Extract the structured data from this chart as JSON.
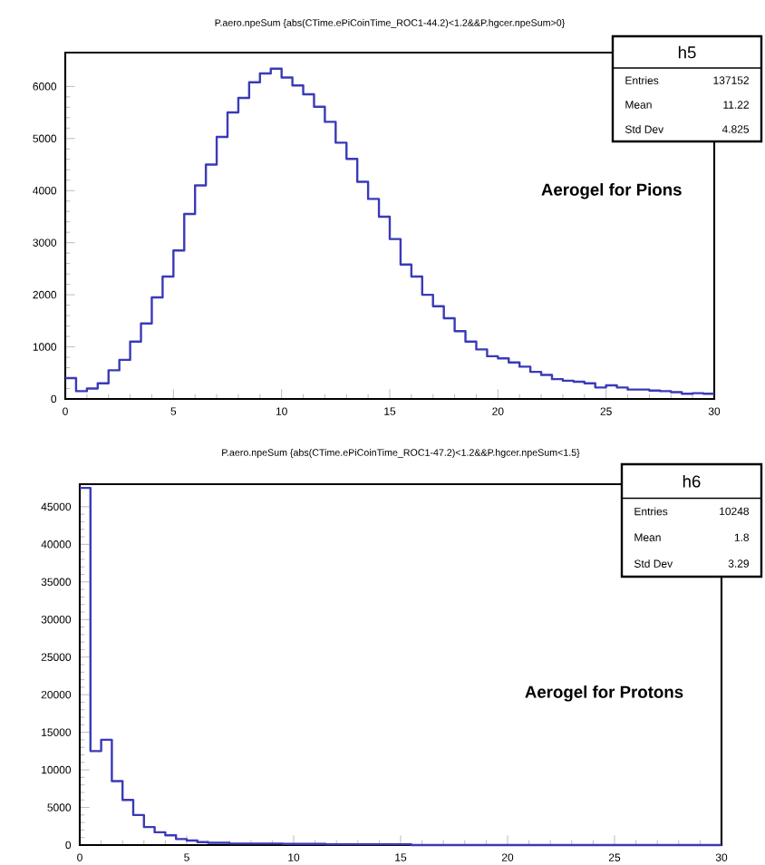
{
  "chart_data": [
    {
      "type": "histogram",
      "title": "P.aero.npeSum {abs(CTime.ePiCoinTime_ROC1-44.2)<1.2&&P.hgcer.npeSum>0}",
      "color": "#3a3ab8",
      "bins": [
        0,
        0.5,
        1,
        1.5,
        2,
        2.5,
        3,
        3.5,
        4,
        4.5,
        5,
        5.5,
        6,
        6.5,
        7,
        7.5,
        8,
        8.5,
        9,
        9.5,
        10,
        10.5,
        11,
        11.5,
        12,
        12.5,
        13,
        13.5,
        14,
        14.5,
        15,
        15.5,
        16,
        16.5,
        17,
        17.5,
        18,
        18.5,
        19,
        19.5,
        20,
        20.5,
        21,
        21.5,
        22,
        22.5,
        23,
        23.5,
        24,
        24.5,
        25,
        25.5,
        26,
        26.5,
        27,
        27.5,
        28,
        28.5,
        29,
        29.5,
        30
      ],
      "values": [
        400,
        150,
        200,
        300,
        550,
        750,
        1100,
        1450,
        1950,
        2350,
        2850,
        3550,
        4100,
        4500,
        5030,
        5500,
        5780,
        6080,
        6250,
        6340,
        6170,
        6020,
        5850,
        5610,
        5320,
        4920,
        4610,
        4170,
        3840,
        3500,
        3070,
        2580,
        2350,
        2000,
        1780,
        1550,
        1300,
        1100,
        950,
        820,
        780,
        700,
        620,
        520,
        460,
        380,
        350,
        330,
        300,
        220,
        260,
        220,
        180,
        180,
        160,
        150,
        130,
        100,
        110,
        100
      ],
      "xlim": [
        0,
        30
      ],
      "ylim": [
        0,
        6650
      ],
      "xticks": [
        0,
        5,
        10,
        15,
        20,
        25,
        30
      ],
      "yticks": [
        0,
        1000,
        2000,
        3000,
        4000,
        5000,
        6000
      ],
      "annotations": [
        "h5",
        "Entries",
        "137152",
        "Mean",
        "11.22",
        "Std Dev",
        "4.825",
        "Aerogel for Pions"
      ]
    },
    {
      "type": "histogram",
      "title": "P.aero.npeSum {abs(CTime.ePiCoinTime_ROC1-47.2)<1.2&&P.hgcer.npeSum<1.5}",
      "color": "#3a3ab8",
      "bins": [
        0,
        0.5,
        1,
        1.5,
        2,
        2.5,
        3,
        3.5,
        4,
        4.5,
        5,
        5.5,
        6,
        6.5,
        7,
        7.5,
        8,
        8.5,
        9,
        9.5,
        10,
        10.5,
        11,
        11.5,
        12,
        12.5,
        13,
        13.5,
        14,
        14.5,
        15,
        15.5,
        16,
        16.5,
        17,
        17.5,
        18,
        18.5,
        19,
        19.5,
        20,
        20.5,
        21,
        21.5,
        22,
        22.5,
        23,
        23.5,
        24,
        24.5,
        25,
        25.5,
        26,
        26.5,
        27,
        27.5,
        28,
        28.5,
        29,
        29.5,
        30
      ],
      "values": [
        47500,
        12500,
        14000,
        8500,
        6000,
        4000,
        2400,
        1700,
        1300,
        800,
        600,
        400,
        300,
        300,
        200,
        200,
        200,
        200,
        200,
        150,
        150,
        150,
        150,
        100,
        100,
        100,
        100,
        100,
        100,
        100,
        100,
        0,
        0,
        0,
        0,
        0,
        0,
        0,
        0,
        0,
        0,
        0,
        0,
        0,
        0,
        0,
        0,
        0,
        0,
        0,
        0,
        0,
        0,
        0,
        0,
        0,
        0,
        0,
        0,
        0
      ],
      "xlim": [
        0,
        30
      ],
      "ylim": [
        0,
        48000
      ],
      "xticks": [
        0,
        5,
        10,
        15,
        20,
        25,
        30
      ],
      "yticks": [
        0,
        5000,
        10000,
        15000,
        20000,
        25000,
        30000,
        35000,
        40000,
        45000
      ],
      "annotations": [
        "h6",
        "Entries",
        "10248",
        "Mean",
        "1.8",
        "Std Dev",
        "3.29",
        "Aerogel for Protons"
      ]
    }
  ]
}
